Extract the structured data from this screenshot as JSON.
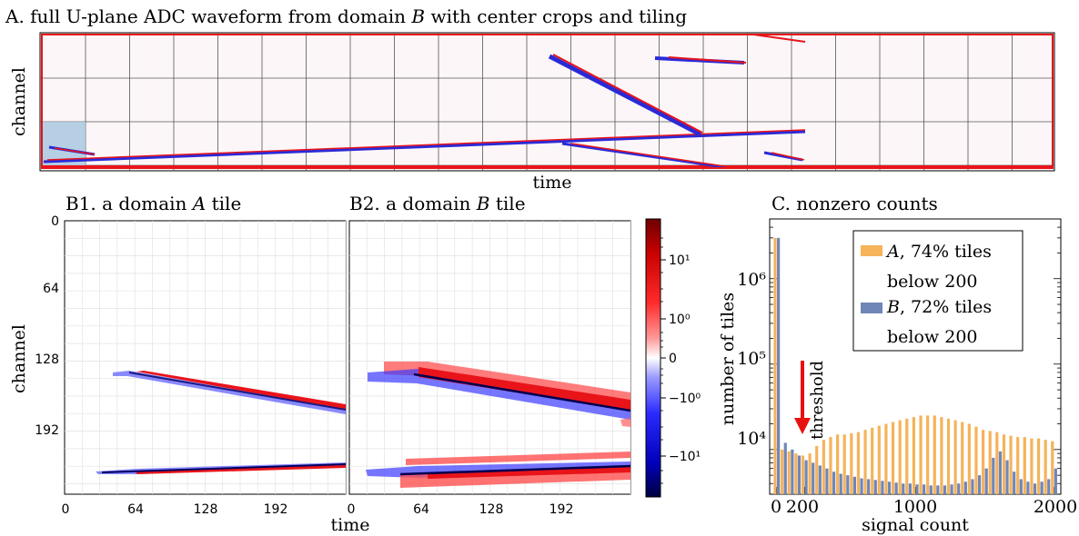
{
  "colors": {
    "red": "#e8141a",
    "blue": "#2a2ad8",
    "panel_bg": "#fdf6f8",
    "crop_fill": "#a9c8e0",
    "orange_bar": "#f5b35a",
    "blue_bar": "#6f86b8",
    "arrow": "#e81010"
  },
  "panel_a": {
    "title": "A. full U-plane ADC waveform from domain B with center crops and tiling",
    "title_plain": "A. full U-plane ADC waveform from domain ",
    "title_var": "B",
    "title_rest": " with center crops and tiling",
    "ylabel": "channel",
    "xlabel": "time",
    "grid": "on"
  },
  "panel_b1": {
    "title_plain": "B1. a domain ",
    "title_var": "A",
    "title_rest": " tile",
    "ylabel": "channel",
    "xticks": [
      "0",
      "64",
      "128",
      "192"
    ],
    "yticks": [
      "0",
      "64",
      "128",
      "192"
    ]
  },
  "panel_b2": {
    "title_plain": "B2. a domain ",
    "title_var": "B",
    "title_rest": " tile",
    "xticks": [
      "0",
      "64",
      "128",
      "192"
    ]
  },
  "shared_xlabel": "time",
  "colorbar": {
    "ticks": [
      "10¹",
      "10⁰",
      "0",
      "−10⁰",
      "−10¹"
    ],
    "tick_values": [
      10,
      1,
      0,
      -1,
      -10
    ],
    "scale": "symlog"
  },
  "chart_data": {
    "type": "bar",
    "title": "C. nonzero counts",
    "xlabel": "signal count",
    "ylabel": "number of tiles",
    "xlim": [
      -50,
      2050
    ],
    "ylim": [
      3000,
      5000000
    ],
    "yscale": "log",
    "xticks": [
      "0",
      "200",
      "1000",
      "2000"
    ],
    "xtick_values": [
      0,
      200,
      1000,
      2000
    ],
    "yticks": [
      "10⁴",
      "10⁵",
      "10⁶"
    ],
    "ytick_values": [
      10000,
      100000,
      1000000
    ],
    "legend_position": "top-right",
    "annotation": {
      "text": "threshold",
      "x": 200
    },
    "x": [
      0,
      50,
      100,
      150,
      200,
      250,
      300,
      350,
      400,
      450,
      500,
      550,
      600,
      650,
      700,
      750,
      800,
      850,
      900,
      950,
      1000,
      1050,
      1100,
      1150,
      1200,
      1250,
      1300,
      1350,
      1400,
      1450,
      1500,
      1550,
      1600,
      1650,
      1700,
      1750,
      1800,
      1850,
      1900,
      1950,
      2000
    ],
    "series": [
      {
        "name": "A, 74% tiles below 200",
        "label_var": "A",
        "label_rest": ", 74% tiles",
        "label_line2": "below 200",
        "color": "#f5b35a",
        "values": [
          3000000,
          10000,
          9500,
          9000,
          8500,
          9000,
          11000,
          13000,
          14000,
          15000,
          15000,
          15500,
          16000,
          17000,
          18000,
          19000,
          20000,
          21000,
          22000,
          23000,
          24000,
          25000,
          25000,
          25000,
          24000,
          23000,
          22000,
          21000,
          20000,
          18500,
          17000,
          16500,
          16000,
          15000,
          14500,
          14000,
          14000,
          13500,
          13500,
          13000,
          12500
        ]
      },
      {
        "name": "B, 72% tiles below 200",
        "label_var": "B",
        "label_rest": ", 72% tiles",
        "label_line2": "below 200",
        "color": "#6f86b8",
        "values": [
          3000000,
          12000,
          10000,
          8500,
          7500,
          7000,
          6500,
          6000,
          5500,
          5200,
          5000,
          4800,
          4600,
          4500,
          4400,
          4300,
          4200,
          4100,
          4000,
          4000,
          3900,
          3900,
          3800,
          3800,
          3800,
          3900,
          4000,
          4200,
          4500,
          5000,
          6000,
          8000,
          9500,
          7500,
          5500,
          4500,
          4200,
          4000,
          4200,
          4500,
          6000
        ]
      }
    ]
  }
}
